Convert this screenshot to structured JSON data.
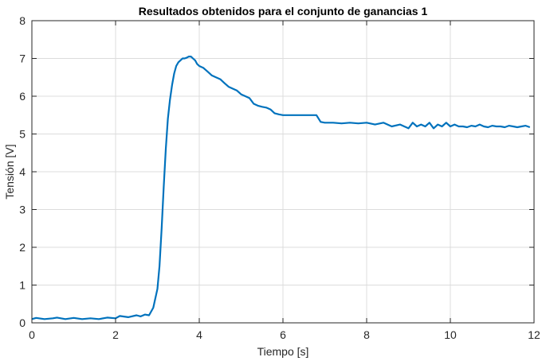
{
  "chart_data": {
    "type": "line",
    "title": "Resultados obtenidos para el conjunto de ganancias 1",
    "xlabel": "Tiempo [s]",
    "ylabel": "Tensión [V]",
    "xlim": [
      0,
      12
    ],
    "ylim": [
      0,
      8
    ],
    "xticks": [
      0,
      2,
      4,
      6,
      8,
      10,
      12
    ],
    "yticks": [
      0,
      1,
      2,
      3,
      4,
      5,
      6,
      7,
      8
    ],
    "grid": true,
    "legend": "none",
    "series": [
      {
        "color": "#0072BD",
        "x": [
          0,
          0.1,
          0.3,
          0.5,
          0.6,
          0.8,
          1.0,
          1.2,
          1.4,
          1.6,
          1.8,
          2.0,
          2.1,
          2.3,
          2.5,
          2.6,
          2.7,
          2.8,
          2.9,
          3.0,
          3.05,
          3.1,
          3.15,
          3.2,
          3.25,
          3.3,
          3.35,
          3.4,
          3.45,
          3.5,
          3.55,
          3.6,
          3.65,
          3.7,
          3.75,
          3.8,
          3.85,
          3.9,
          3.95,
          4.0,
          4.1,
          4.2,
          4.3,
          4.4,
          4.5,
          4.6,
          4.7,
          4.8,
          4.9,
          5.0,
          5.1,
          5.2,
          5.3,
          5.4,
          5.5,
          5.6,
          5.7,
          5.8,
          5.9,
          6.0,
          6.2,
          6.4,
          6.6,
          6.8,
          6.9,
          7.0,
          7.2,
          7.4,
          7.6,
          7.8,
          8.0,
          8.2,
          8.4,
          8.6,
          8.8,
          9.0,
          9.1,
          9.2,
          9.3,
          9.4,
          9.5,
          9.6,
          9.7,
          9.8,
          9.9,
          10.0,
          10.1,
          10.2,
          10.3,
          10.4,
          10.5,
          10.6,
          10.7,
          10.8,
          10.9,
          11.0,
          11.1,
          11.2,
          11.3,
          11.4,
          11.5,
          11.6,
          11.7,
          11.8,
          11.9
        ],
        "y": [
          0.1,
          0.13,
          0.1,
          0.12,
          0.14,
          0.1,
          0.13,
          0.1,
          0.12,
          0.1,
          0.14,
          0.12,
          0.18,
          0.15,
          0.2,
          0.17,
          0.22,
          0.2,
          0.4,
          0.9,
          1.5,
          2.5,
          3.6,
          4.6,
          5.4,
          5.9,
          6.3,
          6.6,
          6.8,
          6.9,
          6.95,
          7.0,
          7.0,
          7.02,
          7.05,
          7.05,
          7.0,
          6.95,
          6.85,
          6.8,
          6.75,
          6.65,
          6.55,
          6.5,
          6.45,
          6.35,
          6.25,
          6.2,
          6.15,
          6.05,
          6.0,
          5.95,
          5.8,
          5.75,
          5.72,
          5.7,
          5.65,
          5.55,
          5.52,
          5.5,
          5.5,
          5.5,
          5.5,
          5.5,
          5.32,
          5.3,
          5.3,
          5.28,
          5.3,
          5.28,
          5.3,
          5.25,
          5.3,
          5.2,
          5.25,
          5.15,
          5.3,
          5.2,
          5.25,
          5.2,
          5.3,
          5.15,
          5.25,
          5.2,
          5.3,
          5.2,
          5.25,
          5.2,
          5.2,
          5.18,
          5.22,
          5.2,
          5.25,
          5.2,
          5.18,
          5.22,
          5.2,
          5.2,
          5.18,
          5.22,
          5.2,
          5.18,
          5.2,
          5.22,
          5.18
        ]
      }
    ]
  }
}
